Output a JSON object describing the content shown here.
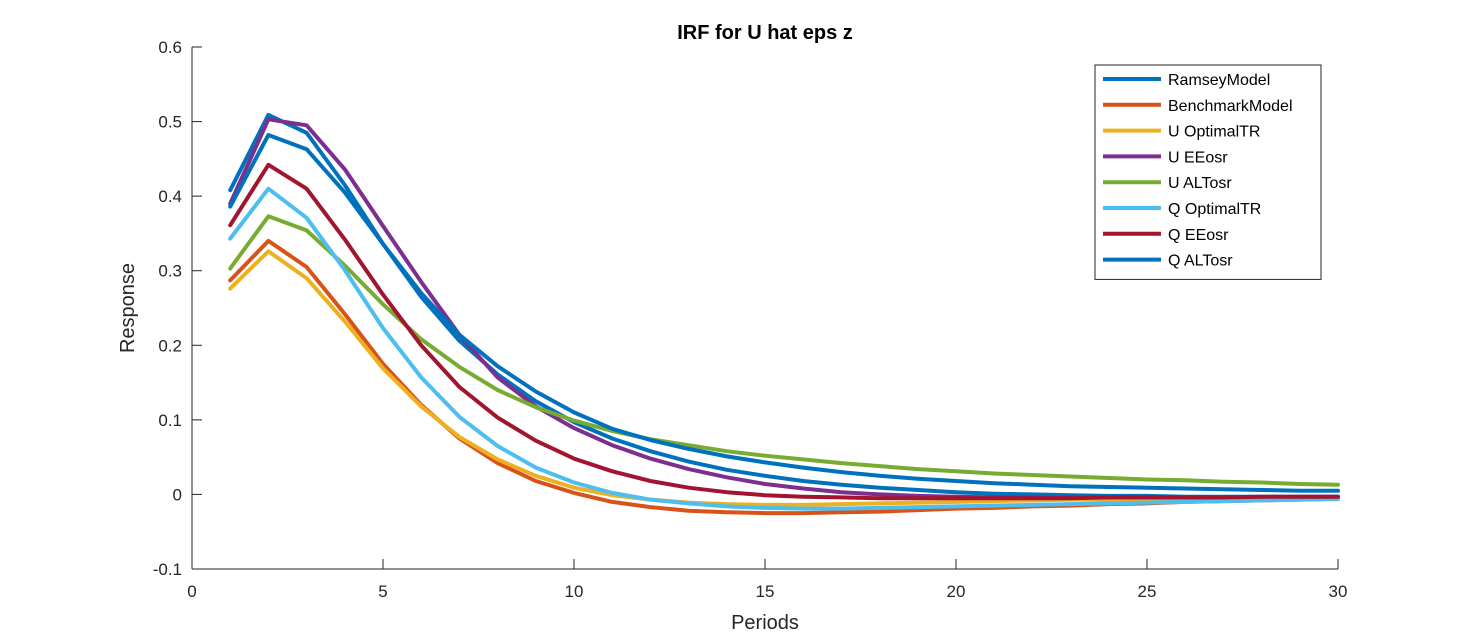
{
  "chart_data": {
    "type": "line",
    "title": "IRF for U hat eps z",
    "xlabel": "Periods",
    "ylabel": "Response",
    "xlim": [
      0,
      30
    ],
    "ylim": [
      -0.1,
      0.6
    ],
    "xticks": [
      0,
      5,
      10,
      15,
      20,
      25,
      30
    ],
    "xtick_labels": [
      "0",
      "5",
      "10",
      "15",
      "20",
      "25",
      "30"
    ],
    "yticks": [
      -0.1,
      0,
      0.1,
      0.2,
      0.3,
      0.4,
      0.5,
      0.6
    ],
    "ytick_labels": [
      "-0.1",
      "0",
      "0.1",
      "0.2",
      "0.3",
      "0.4",
      "0.5",
      "0.6"
    ],
    "grid": false,
    "legend_position": "top-right",
    "x": [
      1,
      2,
      3,
      4,
      5,
      6,
      7,
      8,
      9,
      10,
      11,
      12,
      13,
      14,
      15,
      16,
      17,
      18,
      19,
      20,
      21,
      22,
      23,
      24,
      25,
      26,
      27,
      28,
      29,
      30
    ],
    "series": [
      {
        "name": "RamseyModel",
        "color": "#0072BD",
        "values": [
          0.408,
          0.509,
          0.485,
          0.415,
          0.336,
          0.265,
          0.206,
          0.161,
          0.125,
          0.097,
          0.075,
          0.058,
          0.044,
          0.033,
          0.025,
          0.018,
          0.013,
          0.009,
          0.006,
          0.003,
          0.001,
          0.0,
          -0.001,
          -0.002,
          -0.002,
          -0.003,
          -0.003,
          -0.003,
          -0.003,
          -0.003
        ]
      },
      {
        "name": "BenchmarkModel",
        "color": "#D95319",
        "values": [
          0.287,
          0.34,
          0.305,
          0.242,
          0.175,
          0.12,
          0.075,
          0.042,
          0.018,
          0.002,
          -0.01,
          -0.017,
          -0.022,
          -0.024,
          -0.025,
          -0.025,
          -0.024,
          -0.023,
          -0.021,
          -0.019,
          -0.018,
          -0.016,
          -0.015,
          -0.013,
          -0.012,
          -0.01,
          -0.009,
          -0.008,
          -0.007,
          -0.006
        ]
      },
      {
        "name": "U OptimalTR",
        "color": "#EDB120",
        "values": [
          0.276,
          0.326,
          0.29,
          0.232,
          0.169,
          0.118,
          0.077,
          0.047,
          0.025,
          0.009,
          -0.001,
          -0.007,
          -0.011,
          -0.013,
          -0.014,
          -0.014,
          -0.013,
          -0.012,
          -0.011,
          -0.01,
          -0.009,
          -0.008,
          -0.007,
          -0.007,
          -0.006,
          -0.006,
          -0.005,
          -0.005,
          -0.004,
          -0.004
        ]
      },
      {
        "name": "U EEosr",
        "color": "#7E2F8E",
        "values": [
          0.39,
          0.503,
          0.495,
          0.436,
          0.36,
          0.285,
          0.214,
          0.157,
          0.118,
          0.089,
          0.066,
          0.048,
          0.034,
          0.023,
          0.014,
          0.008,
          0.003,
          0.0,
          -0.002,
          -0.003,
          -0.004,
          -0.004,
          -0.004,
          -0.004,
          -0.004,
          -0.004,
          -0.004,
          -0.004,
          -0.003,
          -0.003
        ]
      },
      {
        "name": "U ALTosr",
        "color": "#77AC30",
        "values": [
          0.303,
          0.373,
          0.354,
          0.307,
          0.255,
          0.208,
          0.171,
          0.14,
          0.117,
          0.099,
          0.085,
          0.074,
          0.066,
          0.058,
          0.052,
          0.047,
          0.042,
          0.038,
          0.034,
          0.031,
          0.028,
          0.026,
          0.024,
          0.022,
          0.02,
          0.019,
          0.017,
          0.016,
          0.014,
          0.013
        ]
      },
      {
        "name": "Q OptimalTR",
        "color": "#4DBEEE",
        "values": [
          0.343,
          0.41,
          0.371,
          0.301,
          0.223,
          0.157,
          0.104,
          0.065,
          0.036,
          0.016,
          0.002,
          -0.007,
          -0.012,
          -0.016,
          -0.018,
          -0.019,
          -0.019,
          -0.018,
          -0.017,
          -0.016,
          -0.015,
          -0.014,
          -0.013,
          -0.012,
          -0.011,
          -0.01,
          -0.009,
          -0.008,
          -0.007,
          -0.006
        ]
      },
      {
        "name": "Q EEosr",
        "color": "#A2142F",
        "values": [
          0.361,
          0.442,
          0.41,
          0.342,
          0.268,
          0.2,
          0.144,
          0.103,
          0.072,
          0.048,
          0.031,
          0.018,
          0.009,
          0.003,
          -0.001,
          -0.003,
          -0.004,
          -0.005,
          -0.005,
          -0.005,
          -0.005,
          -0.005,
          -0.005,
          -0.004,
          -0.004,
          -0.004,
          -0.004,
          -0.003,
          -0.003,
          -0.003
        ]
      },
      {
        "name": "Q ALTosr",
        "color": "#0072BD",
        "values": [
          0.386,
          0.482,
          0.463,
          0.405,
          0.336,
          0.27,
          0.214,
          0.172,
          0.138,
          0.11,
          0.088,
          0.073,
          0.061,
          0.051,
          0.043,
          0.036,
          0.03,
          0.025,
          0.021,
          0.018,
          0.015,
          0.013,
          0.011,
          0.01,
          0.009,
          0.008,
          0.007,
          0.006,
          0.005,
          0.005
        ]
      }
    ]
  }
}
